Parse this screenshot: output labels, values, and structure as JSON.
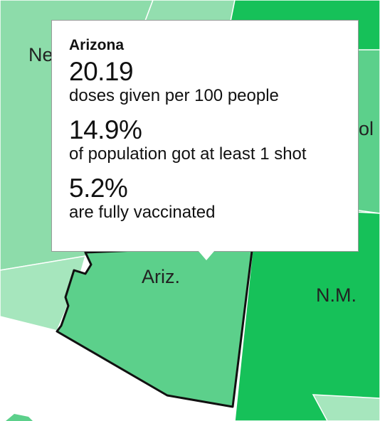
{
  "map": {
    "labels": {
      "nevada_partial": "Ne",
      "colorado_partial": "ol",
      "arizona": "Ariz.",
      "new_mexico": "N.M."
    },
    "colors": {
      "light_green": "#8ddcaa",
      "lighter_green": "#a6e6bd",
      "medium_green": "#5cd08b",
      "dark_green": "#16c159",
      "border": "#ffffff",
      "highlight_border": "#111111"
    }
  },
  "tooltip": {
    "state": "Arizona",
    "doses_value": "20.19",
    "doses_desc": "doses given per 100 people",
    "one_shot_value": "14.9%",
    "one_shot_desc": "of population got at least 1 shot",
    "full_value": "5.2%",
    "full_desc": "are fully vaccinated"
  }
}
